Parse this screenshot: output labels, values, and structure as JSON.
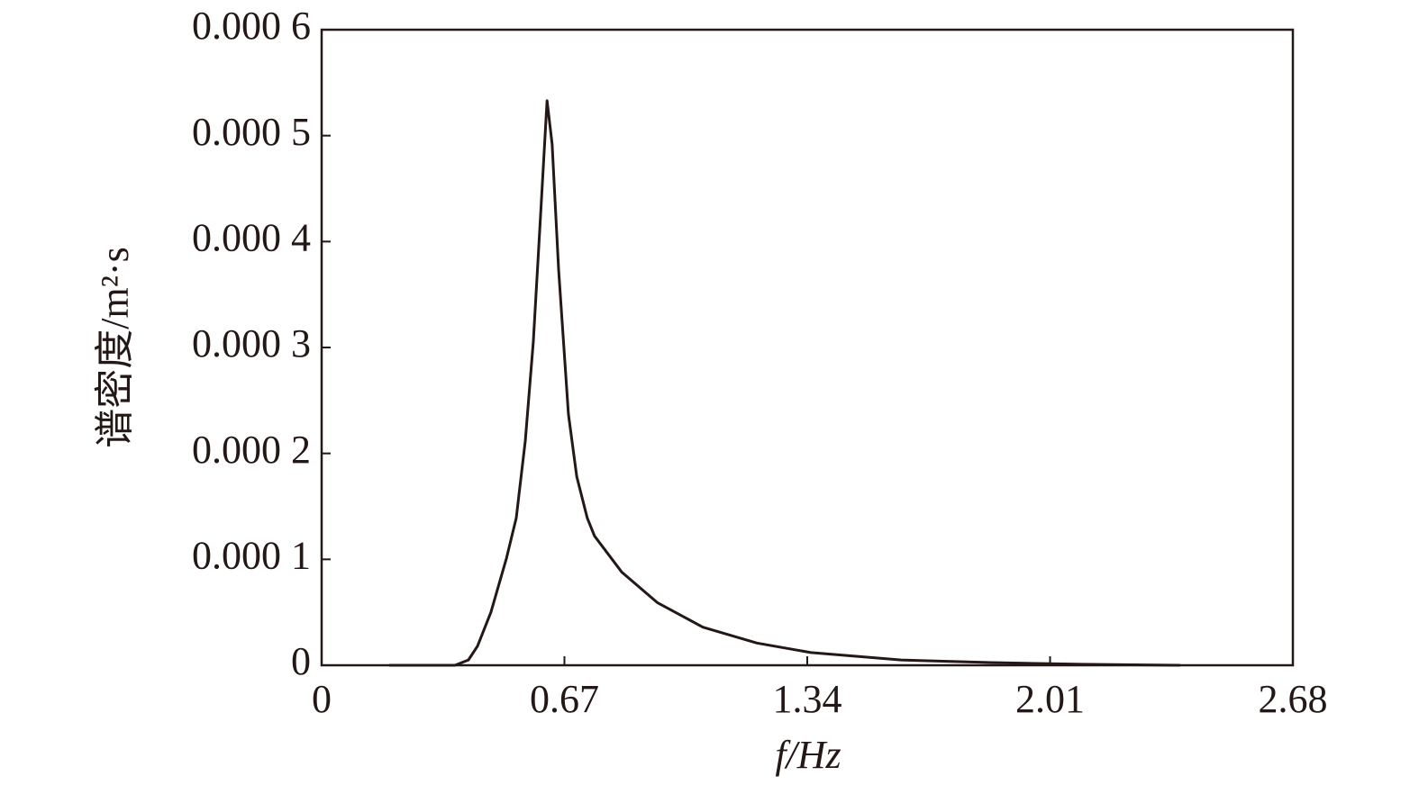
{
  "chart_data": {
    "type": "line",
    "x_label": "f/Hz",
    "y_label": "谱密度/m²·s",
    "x": [
      0.186,
      0.368,
      0.405,
      0.43,
      0.467,
      0.51,
      0.537,
      0.562,
      0.584,
      0.604,
      0.622,
      0.636,
      0.654,
      0.681,
      0.704,
      0.733,
      0.753,
      0.828,
      0.927,
      1.052,
      1.201,
      1.35,
      1.599,
      1.847,
      2.096,
      2.369
    ],
    "series": [
      {
        "color": "#231815",
        "values": [
          0,
          0,
          5e-06,
          1.8e-05,
          5e-05,
          0.000101,
          0.000139,
          0.000212,
          0.000305,
          0.000424,
          0.000533,
          0.000492,
          0.000373,
          0.000237,
          0.000178,
          0.000139,
          0.000122,
          8.8e-05,
          5.9e-05,
          3.6e-05,
          2.1e-05,
          1.2e-05,
          5e-06,
          2.5e-06,
          1e-06,
          0
        ]
      }
    ],
    "xlim": [
      0,
      2.68
    ],
    "xticks": [
      0,
      0.67,
      1.34,
      2.01,
      2.68
    ],
    "ylim": [
      0,
      0.0006
    ],
    "yticks": [
      0,
      {
        "value": 0.0001,
        "label": "0.000 1"
      },
      {
        "value": 0.0002,
        "label": "0.000 2"
      },
      {
        "value": 0.0003,
        "label": "0.000 3"
      },
      {
        "value": 0.0004,
        "label": "0.000 4"
      },
      {
        "value": 0.0005,
        "label": "0.000 5"
      },
      {
        "value": 0.0006,
        "label": "0.000 6"
      }
    ]
  }
}
